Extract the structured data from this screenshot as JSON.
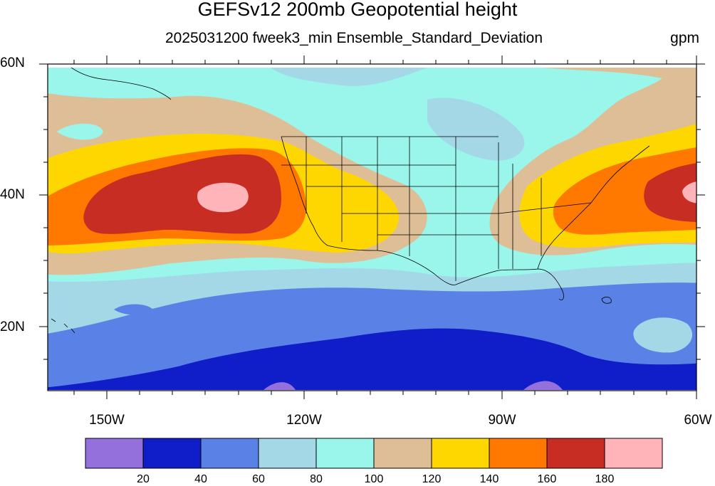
{
  "title": "GEFSv12 200mb Geopotential height",
  "subtitle": "2025031200 fweek3_min Ensemble_Standard_Deviation",
  "units": "gpm",
  "map": {
    "projection": "cylindrical-equidistant",
    "lon_range": [
      -160,
      -60
    ],
    "lat_range": [
      10,
      60
    ],
    "lat_labels": [
      "60N",
      "40N",
      "20N"
    ],
    "lon_labels": [
      "150W",
      "120W",
      "90W",
      "60W"
    ],
    "field": "200mb geopotential height ensemble standard deviation",
    "features": [
      {
        "name": "eastern Pacific maximum",
        "center_lat": 39,
        "center_lon": -140,
        "value_range": "160-180+"
      },
      {
        "name": "northeast US / western Atlantic maximum",
        "center_lat": 40,
        "center_lon": -62,
        "value_range": "160-180+"
      },
      {
        "name": "tropical minimum band",
        "lat": 12,
        "value_range": "20-40"
      }
    ]
  },
  "colorbar": {
    "levels": [
      "20",
      "40",
      "60",
      "80",
      "100",
      "120",
      "140",
      "160",
      "180"
    ],
    "colors": [
      "#9370DB",
      "#0F1EC8",
      "#5A82E6",
      "#A5D8E6",
      "#9AF5EB",
      "#DEBE96",
      "#FFD700",
      "#FF7800",
      "#C82D23",
      "#FFB4B9"
    ]
  }
}
